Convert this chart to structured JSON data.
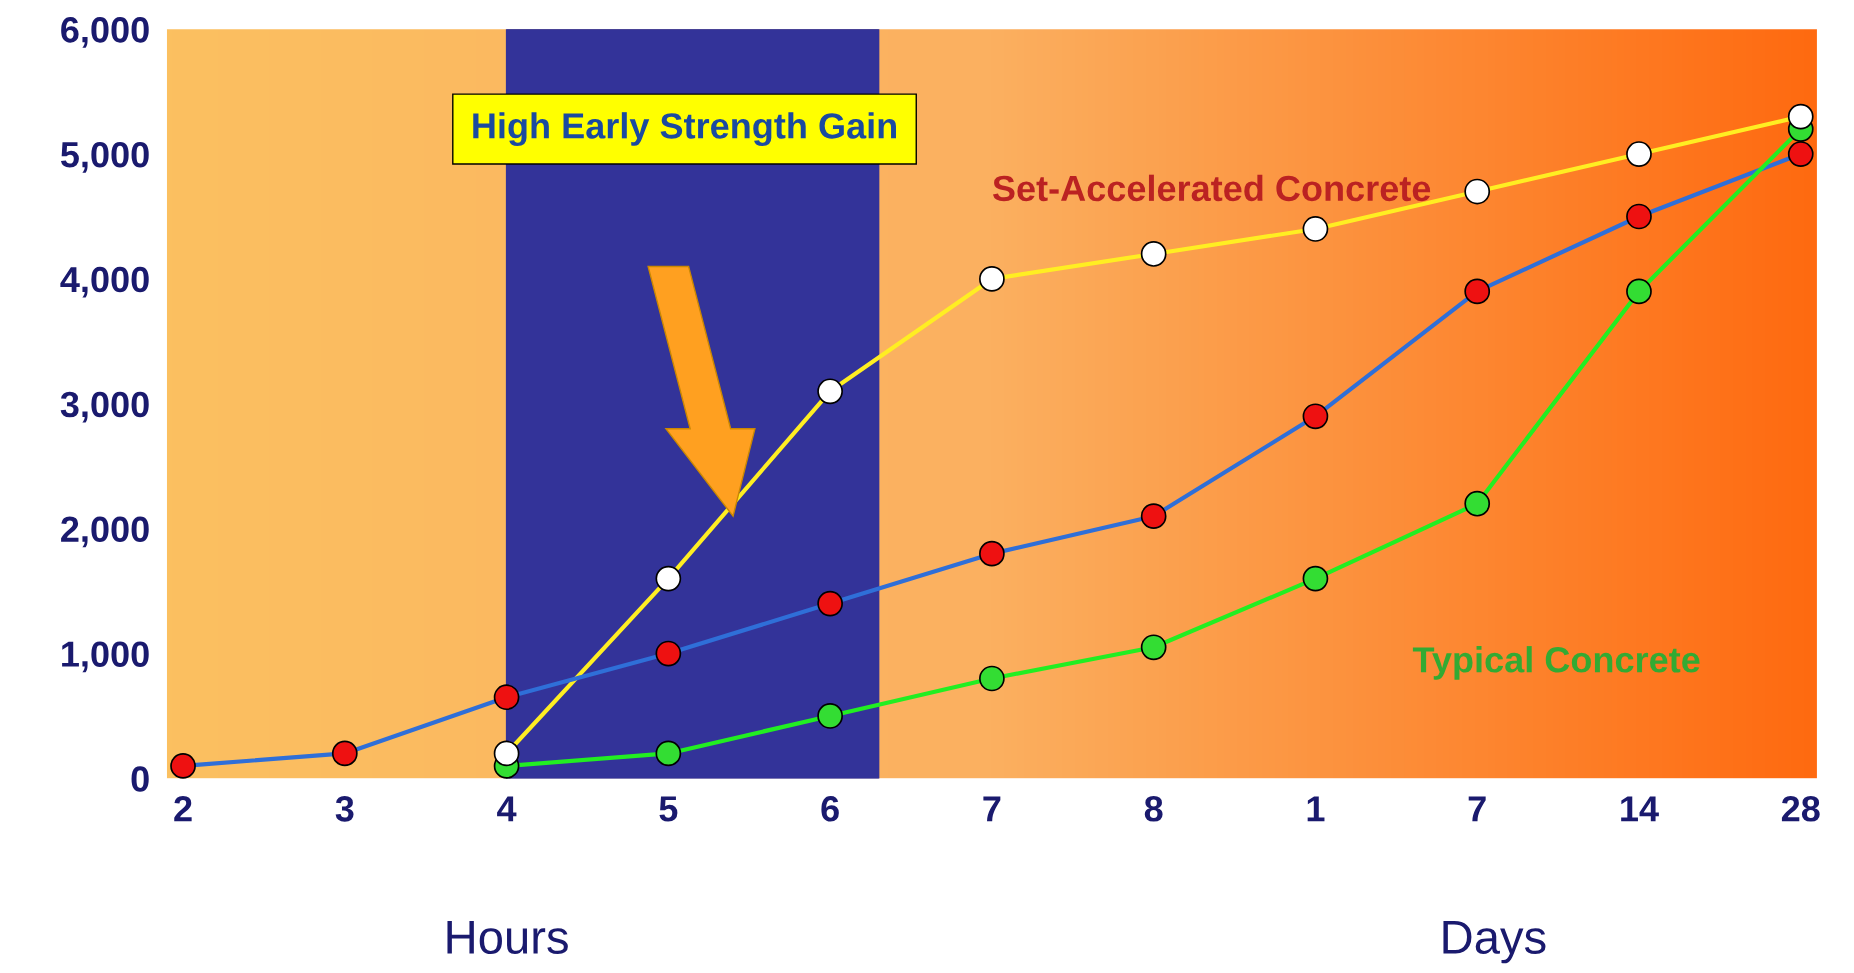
{
  "chart_data": {
    "type": "line",
    "categories": [
      "2",
      "3",
      "4",
      "5",
      "6",
      "7",
      "8",
      "1",
      "7",
      "14",
      "28"
    ],
    "series": [
      {
        "name": "Set-Accelerated Concrete",
        "color": "#ffee22",
        "colors": [
          "#ffffff",
          "#ffffff",
          "#ffffff",
          "#ffffff",
          "#ffffff",
          "#ffffff",
          "#ffffff",
          "#ffffff",
          "#ffffff",
          "#ffffff",
          "#ffffff"
        ],
        "values": [
          null,
          null,
          200,
          1600,
          3100,
          4000,
          4200,
          4400,
          4700,
          5000,
          5300
        ]
      },
      {
        "color": "#2f6fd8",
        "colors": [
          "#ee1111",
          "#ee1111",
          "#ee1111",
          "#ee1111",
          "#ee1111",
          "#ee1111",
          "#ee1111",
          "#ee1111",
          "#ee1111",
          "#ee1111",
          "#ee1111"
        ],
        "values": [
          100,
          200,
          650,
          1000,
          1400,
          1800,
          2100,
          2900,
          3900,
          4500,
          5000
        ]
      },
      {
        "name": "Typical Concrete",
        "color": "#22ee22",
        "colors": [
          "#33dd33",
          "#33dd33",
          "#33dd33",
          "#33dd33",
          "#33dd33",
          "#33dd33",
          "#33dd33",
          "#33dd33",
          "#33dd33",
          "#33dd33",
          "#33dd33"
        ],
        "values": [
          null,
          null,
          100,
          200,
          500,
          800,
          1050,
          1600,
          2200,
          3900,
          5200
        ]
      }
    ],
    "ylim": [
      0,
      6000
    ],
    "yticks": [
      {
        "value": 0,
        "label": "0"
      },
      {
        "value": 1000,
        "label": "1,000"
      },
      {
        "value": 2000,
        "label": "2,000"
      },
      {
        "value": 3000,
        "label": "3,000"
      },
      {
        "value": 4000,
        "label": "4,000"
      },
      {
        "value": 5000,
        "label": "5,000"
      },
      {
        "value": 6000,
        "label": "6,000"
      }
    ],
    "bands": [
      {
        "axis": "x",
        "from": "4",
        "to": "6",
        "color": "#333399"
      }
    ],
    "marker": "circle",
    "grid": false,
    "legend": false,
    "annotations": [
      "High Early Strength Gain",
      "Hours",
      "Days"
    ]
  }
}
